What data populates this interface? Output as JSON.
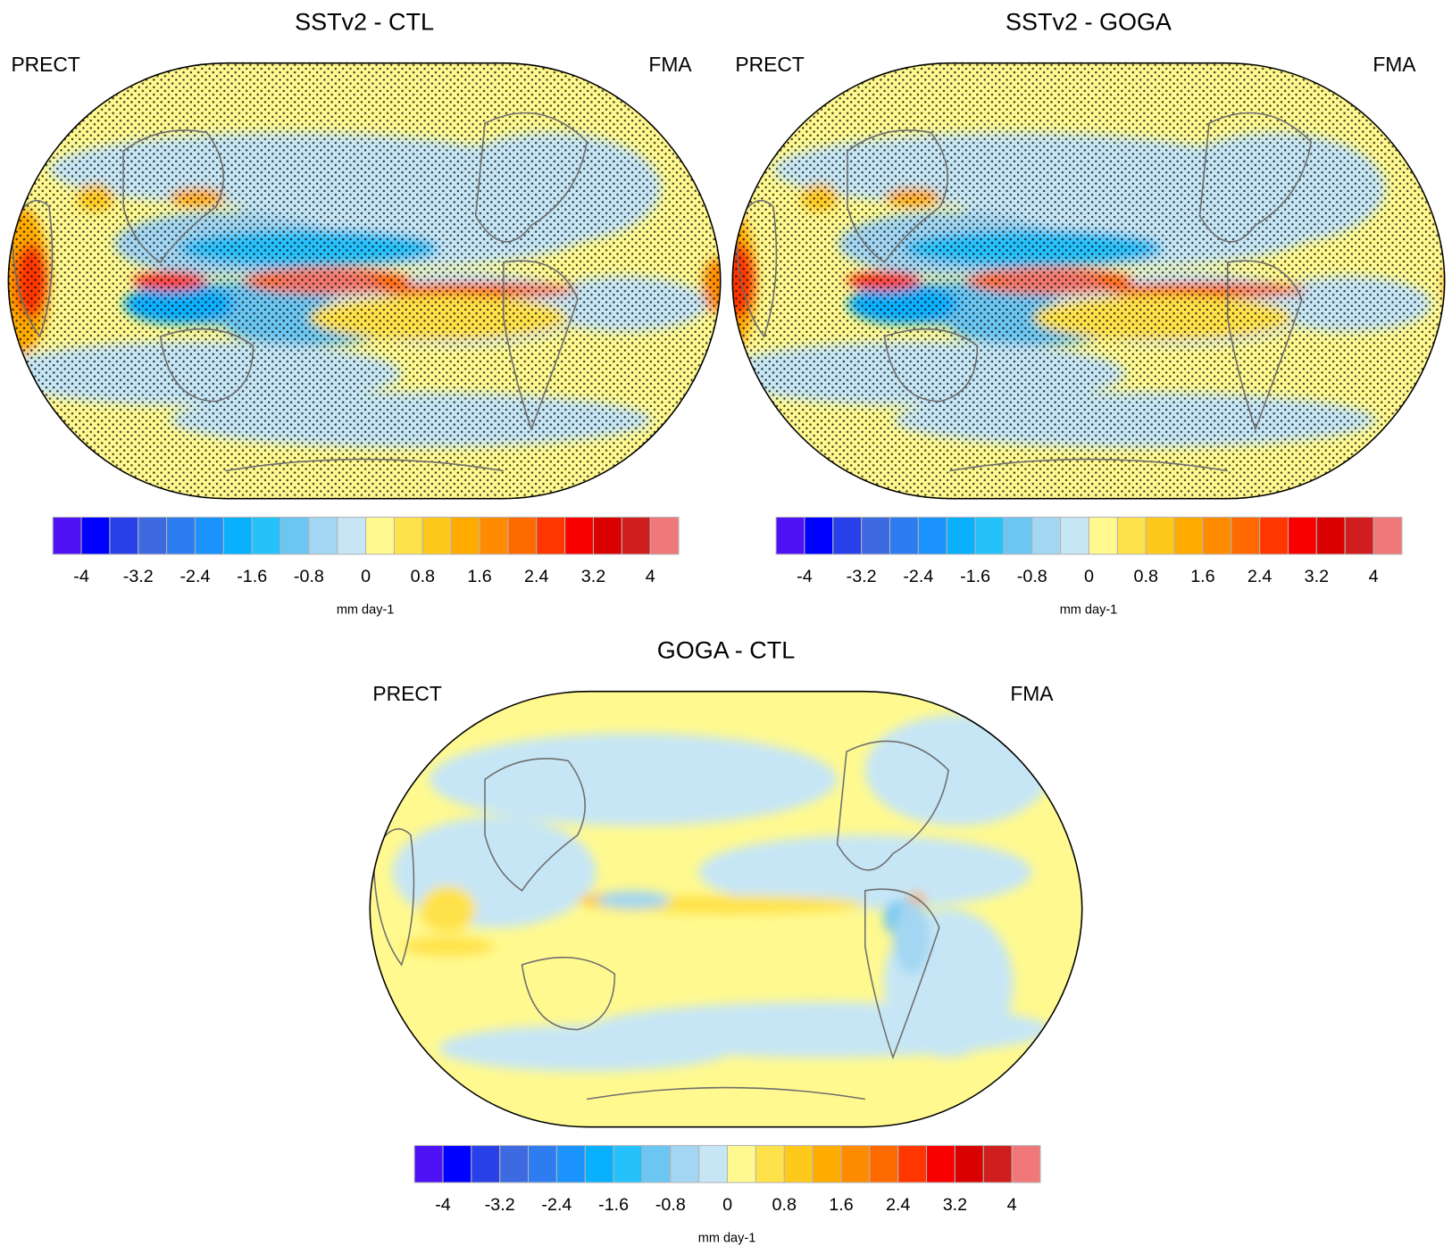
{
  "chart_data": [
    {
      "type": "heatmap",
      "title": "SSTv2 - CTL",
      "left_label": "PRECT",
      "right_label": "FMA",
      "units": "mm day-1",
      "stippled": true,
      "features": "positive anomaly along equatorial central Pacific (>4), negative anomalies north/south of equator in west Pacific"
    },
    {
      "type": "heatmap",
      "title": "SSTv2 - GOGA",
      "left_label": "PRECT",
      "right_label": "FMA",
      "units": "mm day-1",
      "stippled": true,
      "features": "similar pattern to SSTv2 - CTL"
    },
    {
      "type": "heatmap",
      "title": "GOGA - CTL",
      "left_label": "PRECT",
      "right_label": "FMA",
      "units": "mm day-1",
      "stippled": false,
      "features": "weak anomalies mostly within -0.4 to 0.8"
    }
  ],
  "colorbar": {
    "levels": [
      -4,
      -3.6,
      -3.2,
      -2.8,
      -2.4,
      -2,
      -1.6,
      -1.2,
      -0.8,
      -0.4,
      0,
      0.4,
      0.8,
      1.2,
      1.6,
      2,
      2.4,
      2.8,
      3.2,
      3.6,
      4
    ],
    "tick_labels": [
      "-4",
      "-3.2",
      "-2.4",
      "-1.6",
      "-0.8",
      "0",
      "0.8",
      "1.6",
      "2.4",
      "3.2",
      "4"
    ],
    "colors": [
      "#4f12f5",
      "#0000fe",
      "#2840e8",
      "#3d6ae0",
      "#2d7cf0",
      "#1a93fe",
      "#08b0fe",
      "#25c1fa",
      "#6bc6f2",
      "#a3d6f2",
      "#c6e6f6",
      "#fff98f",
      "#ffe24a",
      "#ffc91c",
      "#ffab00",
      "#ff8c00",
      "#ff6a00",
      "#ff3600",
      "#f90000",
      "#d80000",
      "#d01d1d",
      "#f07878"
    ]
  },
  "colors": {
    "land_outline": "#6e6e6e",
    "map_border": "#000000",
    "colorbar_border": "#b4b4b4"
  }
}
